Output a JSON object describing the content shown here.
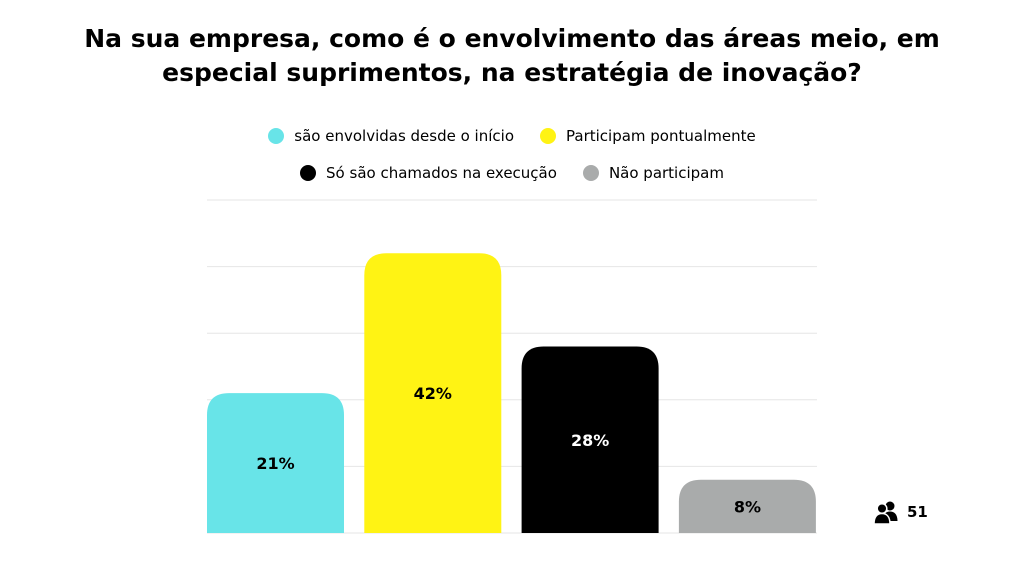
{
  "chart_data": {
    "type": "bar",
    "title": "Na sua empresa, como é o envolvimento das áreas meio, em especial suprimentos, na estratégia de inovação?",
    "title_lines": [
      "Na sua empresa, como é o envolvimento das áreas meio, em",
      "especial suprimentos, na estratégia de inovação?"
    ],
    "categories": [
      "são envolvidas desde o início",
      "Participam pontualmente",
      "Só são chamados na execução",
      "Não participam"
    ],
    "values": [
      21,
      42,
      28,
      8
    ],
    "value_labels": [
      "21%",
      "42%",
      "28%",
      "8%"
    ],
    "colors": [
      "#68e4e8",
      "#fff314",
      "#000000",
      "#a9abab"
    ],
    "label_colors": [
      "#000000",
      "#000000",
      "#ffffff",
      "#000000"
    ],
    "ylim": [
      0,
      50
    ],
    "grid": true,
    "legend_position": "top-center"
  },
  "participants": {
    "icon": "users-icon",
    "count": "51"
  }
}
